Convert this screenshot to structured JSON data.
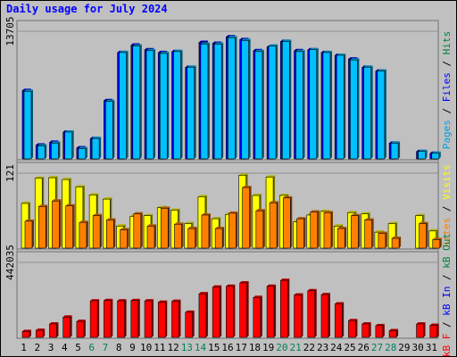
{
  "title": "Daily usage for July 2024",
  "colors": {
    "background": "#c0c0c0",
    "title": "#0000ff",
    "hits": "#00c0ff",
    "files": "#0000ff",
    "pages": "#00a0e0",
    "visits": "#ffff00",
    "sites": "#ff8000",
    "kb_in": "#0000ff",
    "kb_out": "#008040",
    "kb_f": "#ff0000",
    "weekend_day": "#00805c"
  },
  "chart_data": [
    {
      "type": "bar",
      "name": "top",
      "y_axis_label": "13705",
      "ylim": [
        0,
        13705
      ],
      "right_labels": [
        {
          "text": "Pages",
          "color": "#00a0e0"
        },
        {
          "text": " / ",
          "color": "#000000"
        },
        {
          "text": "Files",
          "color": "#0000ff"
        },
        {
          "text": " / ",
          "color": "#000000"
        },
        {
          "text": "Hits",
          "color": "#008040"
        }
      ],
      "categories": [
        "1",
        "2",
        "3",
        "4",
        "5",
        "6",
        "7",
        "8",
        "9",
        "10",
        "11",
        "12",
        "13",
        "14",
        "15",
        "16",
        "17",
        "18",
        "19",
        "20",
        "21",
        "22",
        "23",
        "24",
        "25",
        "26",
        "27",
        "28",
        "29",
        "30",
        "31"
      ],
      "series": [
        {
          "key": "hits",
          "values": [
            7300,
            1400,
            1700,
            2900,
            1100,
            2200,
            6200,
            11500,
            12200,
            11700,
            11400,
            11600,
            9900,
            12400,
            12400,
            13100,
            12800,
            11600,
            12200,
            12700,
            11600,
            11800,
            11500,
            11200,
            10700,
            9900,
            9500,
            1700,
            0,
            800,
            600
          ]
        },
        {
          "key": "files",
          "values": [
            7400,
            1500,
            1800,
            2900,
            1200,
            2200,
            6300,
            11500,
            12300,
            11800,
            11500,
            11600,
            9900,
            12600,
            12500,
            13200,
            12900,
            11700,
            12100,
            12700,
            11700,
            11800,
            11500,
            11200,
            10800,
            9900,
            9500,
            1700,
            0,
            800,
            600
          ]
        }
      ]
    },
    {
      "type": "bar",
      "name": "middle",
      "y_axis_label": "121",
      "ylim": [
        0,
        121
      ],
      "right_labels": [
        {
          "text": "Sites",
          "color": "#ff8000"
        },
        {
          "text": " / ",
          "color": "#000000"
        },
        {
          "text": "Visits",
          "color": "#ffff00"
        }
      ],
      "categories": [
        "1",
        "2",
        "3",
        "4",
        "5",
        "6",
        "7",
        "8",
        "9",
        "10",
        "11",
        "12",
        "13",
        "14",
        "15",
        "16",
        "17",
        "18",
        "19",
        "20",
        "21",
        "22",
        "23",
        "24",
        "25",
        "26",
        "27",
        "28",
        "29",
        "30",
        "31"
      ],
      "series": [
        {
          "key": "visits",
          "values": [
            73,
            114,
            115,
            112,
            100,
            87,
            80,
            36,
            52,
            53,
            66,
            62,
            40,
            84,
            48,
            55,
            119,
            86,
            116,
            86,
            43,
            54,
            60,
            36,
            58,
            56,
            26,
            40,
            0,
            53,
            28
          ]
        },
        {
          "key": "sites",
          "values": [
            44,
            68,
            77,
            69,
            42,
            53,
            46,
            30,
            56,
            36,
            65,
            39,
            32,
            54,
            32,
            57,
            99,
            61,
            74,
            82,
            48,
            59,
            58,
            32,
            53,
            46,
            24,
            16,
            0,
            40,
            14
          ]
        }
      ]
    },
    {
      "type": "bar",
      "name": "bottom",
      "y_axis_label": "442035",
      "ylim": [
        0,
        442035
      ],
      "right_labels": [
        {
          "text": "kB F",
          "color": "#ff0000"
        },
        {
          "text": " / ",
          "color": "#000000"
        },
        {
          "text": "kB In",
          "color": "#0000ff"
        },
        {
          "text": " / ",
          "color": "#000000"
        },
        {
          "text": "kB Out",
          "color": "#008040"
        }
      ],
      "categories": [
        "1",
        "2",
        "3",
        "4",
        "5",
        "6",
        "7",
        "8",
        "9",
        "10",
        "11",
        "12",
        "13",
        "14",
        "15",
        "16",
        "17",
        "18",
        "19",
        "20",
        "21",
        "22",
        "23",
        "24",
        "25",
        "26",
        "27",
        "28",
        "29",
        "30",
        "31"
      ],
      "series": [
        {
          "key": "kb_f",
          "values": [
            35000,
            42000,
            80000,
            121000,
            95000,
            218000,
            220000,
            218000,
            220000,
            218000,
            210000,
            215000,
            150000,
            260000,
            300000,
            305000,
            325000,
            238000,
            305000,
            340000,
            253000,
            278000,
            255000,
            200000,
            100000,
            80000,
            70000,
            40000,
            0,
            80000,
            72000
          ]
        }
      ]
    }
  ],
  "weekend_days": [
    "6",
    "7",
    "13",
    "14",
    "20",
    "21",
    "27",
    "28"
  ]
}
